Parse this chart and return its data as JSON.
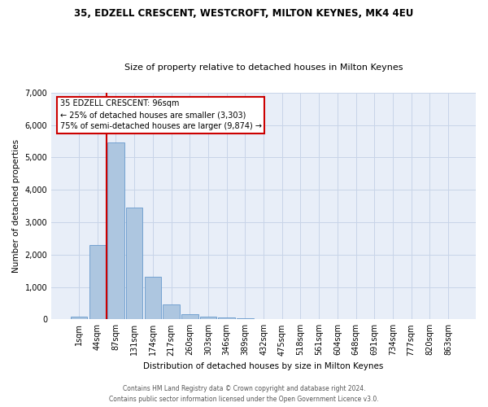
{
  "title_line1": "35, EDZELL CRESCENT, WESTCROFT, MILTON KEYNES, MK4 4EU",
  "title_line2": "Size of property relative to detached houses in Milton Keynes",
  "xlabel": "Distribution of detached houses by size in Milton Keynes",
  "ylabel": "Number of detached properties",
  "footnote1": "Contains HM Land Registry data © Crown copyright and database right 2024.",
  "footnote2": "Contains public sector information licensed under the Open Government Licence v3.0.",
  "bar_labels": [
    "1sqm",
    "44sqm",
    "87sqm",
    "131sqm",
    "174sqm",
    "217sqm",
    "260sqm",
    "303sqm",
    "346sqm",
    "389sqm",
    "432sqm",
    "475sqm",
    "518sqm",
    "561sqm",
    "604sqm",
    "648sqm",
    "691sqm",
    "734sqm",
    "777sqm",
    "820sqm",
    "863sqm"
  ],
  "bar_values": [
    80,
    2290,
    5470,
    3440,
    1310,
    470,
    155,
    90,
    70,
    40,
    0,
    0,
    0,
    0,
    0,
    0,
    0,
    0,
    0,
    0,
    0
  ],
  "bar_color": "#adc6e0",
  "bar_edgecolor": "#6699cc",
  "grid_color": "#c8d4e8",
  "background_color": "#e8eef8",
  "vline_color": "#cc0000",
  "vline_x": 1.5,
  "annotation_text": "35 EDZELL CRESCENT: 96sqm\n← 25% of detached houses are smaller (3,303)\n75% of semi-detached houses are larger (9,874) →",
  "ylim": [
    0,
    7000
  ],
  "yticks": [
    0,
    1000,
    2000,
    3000,
    4000,
    5000,
    6000,
    7000
  ]
}
